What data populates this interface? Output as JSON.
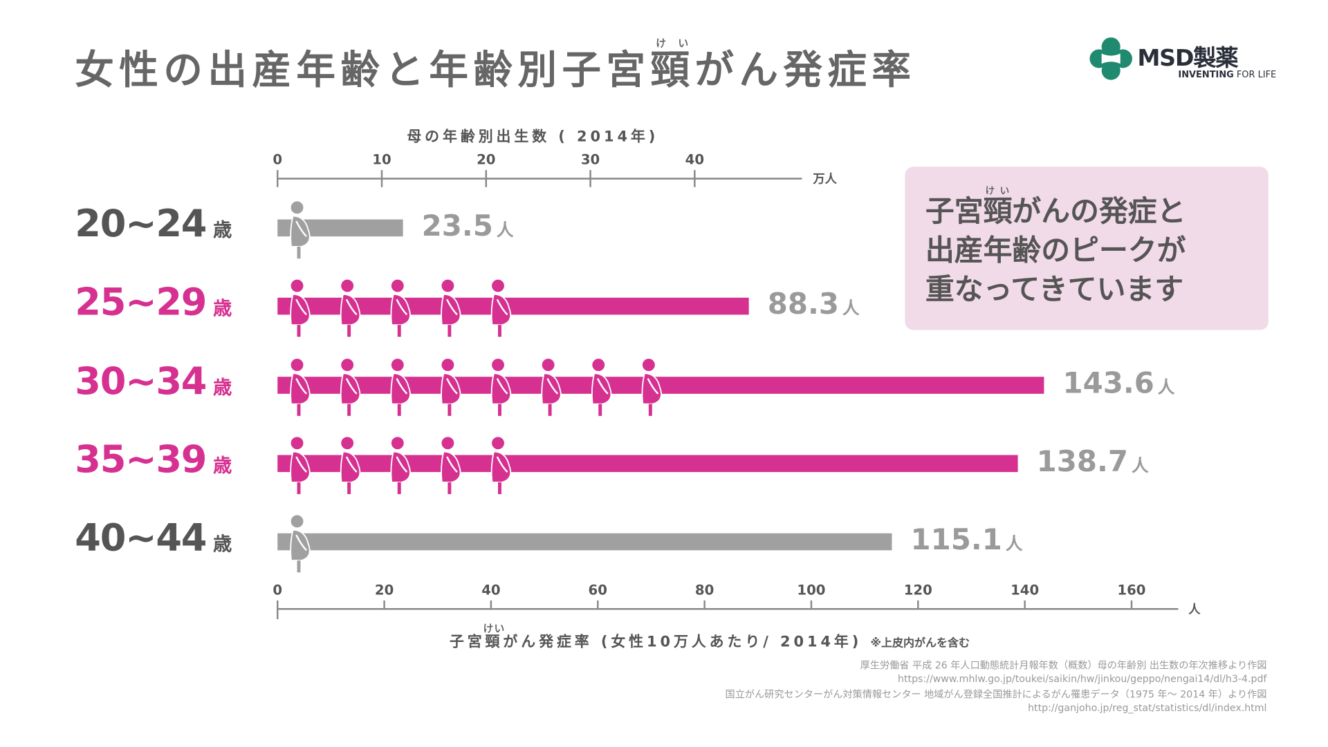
{
  "title": {
    "before": "女性の出産年齢と年齢別子宮",
    "ruby_base": "頸",
    "ruby": "けい",
    "after": "がん発症率"
  },
  "logo": {
    "brand": "MSD製薬",
    "tagline_bold": "INVENTING",
    "tagline": "FOR LIFE",
    "color": "#1f8a70"
  },
  "callout": {
    "line1_before": "子宮",
    "ruby_base": "頸",
    "ruby": "けい",
    "line1_after": "がんの発症と",
    "line2": "出産年齢のピークが",
    "line3": "重なってきています"
  },
  "colors": {
    "highlight": "#d63090",
    "neutral": "#a0a0a0",
    "text": "#555555",
    "callout_bg": "#f2dbe8"
  },
  "chart_data": {
    "type": "bar",
    "orientation": "horizontal",
    "categories": [
      "20~24",
      "25~29",
      "30~34",
      "35~39",
      "40~44"
    ],
    "category_suffix": "歳",
    "values": [
      23.5,
      88.3,
      143.6,
      138.7,
      115.1
    ],
    "value_suffix": "人",
    "highlighted": [
      false,
      true,
      true,
      true,
      false
    ],
    "icon": "pregnant-woman-icon",
    "icon_counts": [
      1,
      5,
      8,
      5,
      1
    ],
    "top_axis": {
      "title": "母の年齢別出生数 ( 2014年)",
      "ticks": [
        0,
        10,
        20,
        30,
        40
      ],
      "unit": "万人",
      "range": [
        0,
        50
      ]
    },
    "bottom_axis": {
      "title_before": "子宮",
      "ruby_base": "頸",
      "ruby": "けい",
      "title_after": "がん発症率 (女性10万人あたり/ 2014年)",
      "note": "※上皮内がんを含む",
      "ticks": [
        0,
        20,
        40,
        60,
        80,
        100,
        120,
        140,
        160
      ],
      "unit": "人",
      "range": [
        0,
        168
      ]
    }
  },
  "sources": [
    "厚生労働省 平成 26 年人口動態統計月報年数（概数）母の年齢別 出生数の年次推移より作図",
    "https://www.mhlw.go.jp/toukei/saikin/hw/jinkou/geppo/nengai14/dl/h3-4.pdf",
    "国立がん研究センターがん対策情報センター 地域がん登録全国推計によるがん罹患データ（1975 年～ 2014 年）より作図",
    "http://ganjoho.jp/reg_stat/statistics/dl/index.html"
  ]
}
